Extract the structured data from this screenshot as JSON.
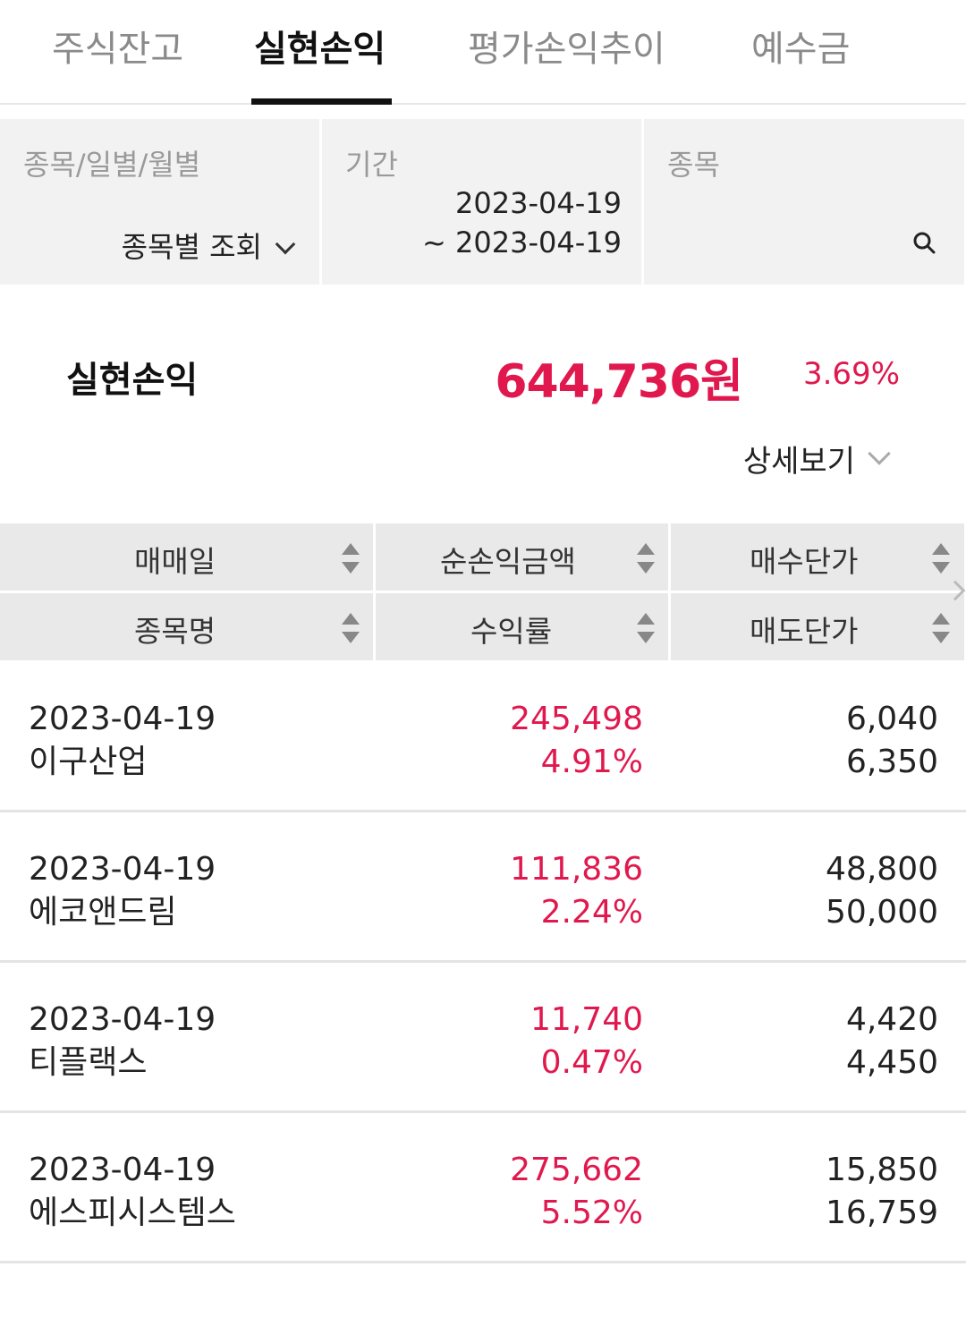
{
  "tabs": [
    {
      "label": "주식잔고",
      "active": false
    },
    {
      "label": "실현손익",
      "active": true
    },
    {
      "label": "평가손익추이",
      "active": false
    },
    {
      "label": "예수금",
      "active": false
    }
  ],
  "filters": {
    "type_label": "종목/일별/월별",
    "type_value": "종목별 조회",
    "period_label": "기간",
    "period_start": "2023-04-19",
    "period_end": "~ 2023-04-19",
    "stock_label": "종목"
  },
  "summary": {
    "label": "실현손익",
    "amount": "644,736원",
    "rate": "3.69%",
    "detail_label": "상세보기"
  },
  "table": {
    "headers": {
      "trade_date": "매매일",
      "net_pl": "순손익금액",
      "buy_price": "매수단가",
      "stock_name": "종목명",
      "return_rate": "수익률",
      "sell_price": "매도단가"
    },
    "rows": [
      {
        "date": "2023-04-19",
        "name": "이구산업",
        "net_pl": "245,498",
        "rate": "4.91%",
        "buy": "6,040",
        "sell": "6,350"
      },
      {
        "date": "2023-04-19",
        "name": "에코앤드림",
        "net_pl": "111,836",
        "rate": "2.24%",
        "buy": "48,800",
        "sell": "50,000"
      },
      {
        "date": "2023-04-19",
        "name": "티플랙스",
        "net_pl": "11,740",
        "rate": "0.47%",
        "buy": "4,420",
        "sell": "4,450"
      },
      {
        "date": "2023-04-19",
        "name": "에스피시스템스",
        "net_pl": "275,662",
        "rate": "5.52%",
        "buy": "15,850",
        "sell": "16,759"
      }
    ]
  },
  "colors": {
    "profit": "#e0184d",
    "header_bg": "#e9e9e9",
    "filter_bg": "#f2f2f2"
  },
  "icons": [
    "chevron-down-icon",
    "search-icon",
    "sort-icon",
    "chevron-right-icon"
  ]
}
